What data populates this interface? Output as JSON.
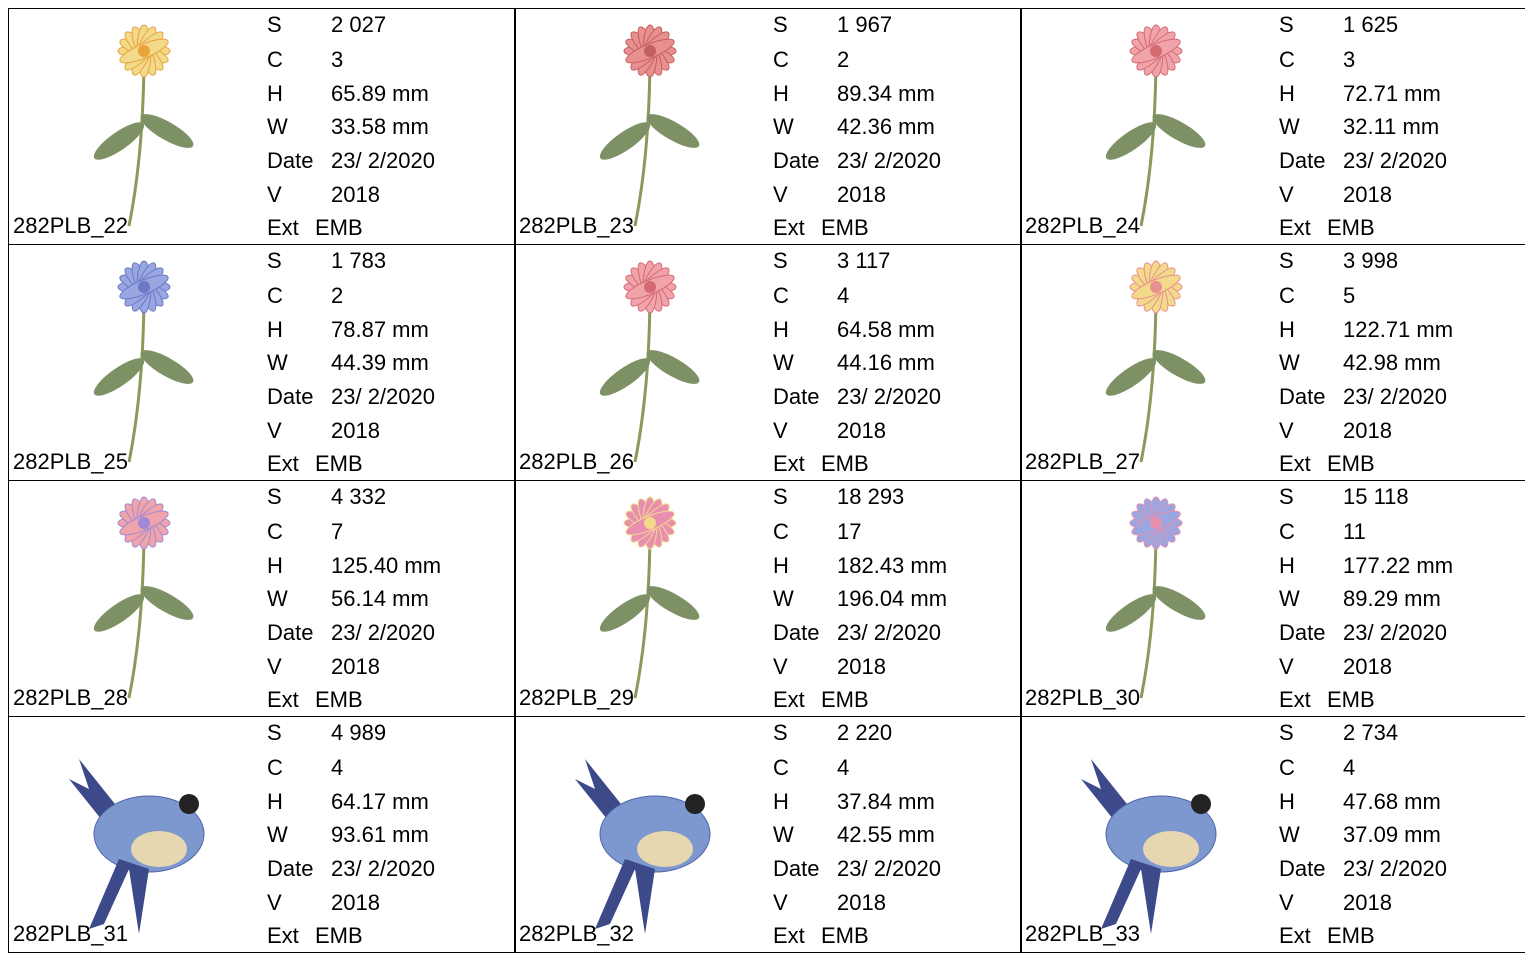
{
  "labels": [
    "S",
    "C",
    "H",
    "W",
    "Date",
    "V",
    "Ext"
  ],
  "designs": [
    {
      "name": "282PLB_22",
      "values": [
        "2 027",
        "3",
        "65.89 mm",
        "33.58 mm",
        "23/ 2/2020",
        "2018",
        "EMB"
      ]
    },
    {
      "name": "282PLB_23",
      "values": [
        "1 967",
        "2",
        "89.34 mm",
        "42.36 mm",
        "23/ 2/2020",
        "2018",
        "EMB"
      ]
    },
    {
      "name": "282PLB_24",
      "values": [
        "1 625",
        "3",
        "72.71 mm",
        "32.11 mm",
        "23/ 2/2020",
        "2018",
        "EMB"
      ]
    },
    {
      "name": "282PLB_25",
      "values": [
        "1 783",
        "2",
        "78.87 mm",
        "44.39 mm",
        "23/ 2/2020",
        "2018",
        "EMB"
      ]
    },
    {
      "name": "282PLB_26",
      "values": [
        "3 117",
        "4",
        "64.58 mm",
        "44.16 mm",
        "23/ 2/2020",
        "2018",
        "EMB"
      ]
    },
    {
      "name": "282PLB_27",
      "values": [
        "3 998",
        "5",
        "122.71 mm",
        "42.98 mm",
        "23/ 2/2020",
        "2018",
        "EMB"
      ]
    },
    {
      "name": "282PLB_28",
      "values": [
        "4 332",
        "7",
        "125.40 mm",
        "56.14 mm",
        "23/ 2/2020",
        "2018",
        "EMB"
      ]
    },
    {
      "name": "282PLB_29",
      "values": [
        "18 293",
        "17",
        "182.43 mm",
        "196.04 mm",
        "23/ 2/2020",
        "2018",
        "EMB"
      ]
    },
    {
      "name": "282PLB_30",
      "values": [
        "15 118",
        "11",
        "177.22 mm",
        "89.29 mm",
        "23/ 2/2020",
        "2018",
        "EMB"
      ]
    },
    {
      "name": "282PLB_31",
      "values": [
        "4 989",
        "4",
        "64.17 mm",
        "93.61 mm",
        "23/ 2/2020",
        "2018",
        "EMB"
      ]
    },
    {
      "name": "282PLB_32",
      "values": [
        "2 220",
        "4",
        "37.84 mm",
        "42.55 mm",
        "23/ 2/2020",
        "2018",
        "EMB"
      ]
    },
    {
      "name": "282PLB_33",
      "values": [
        "2 734",
        "4",
        "47.68 mm",
        "37.09 mm",
        "23/ 2/2020",
        "2018",
        "EMB"
      ]
    }
  ]
}
